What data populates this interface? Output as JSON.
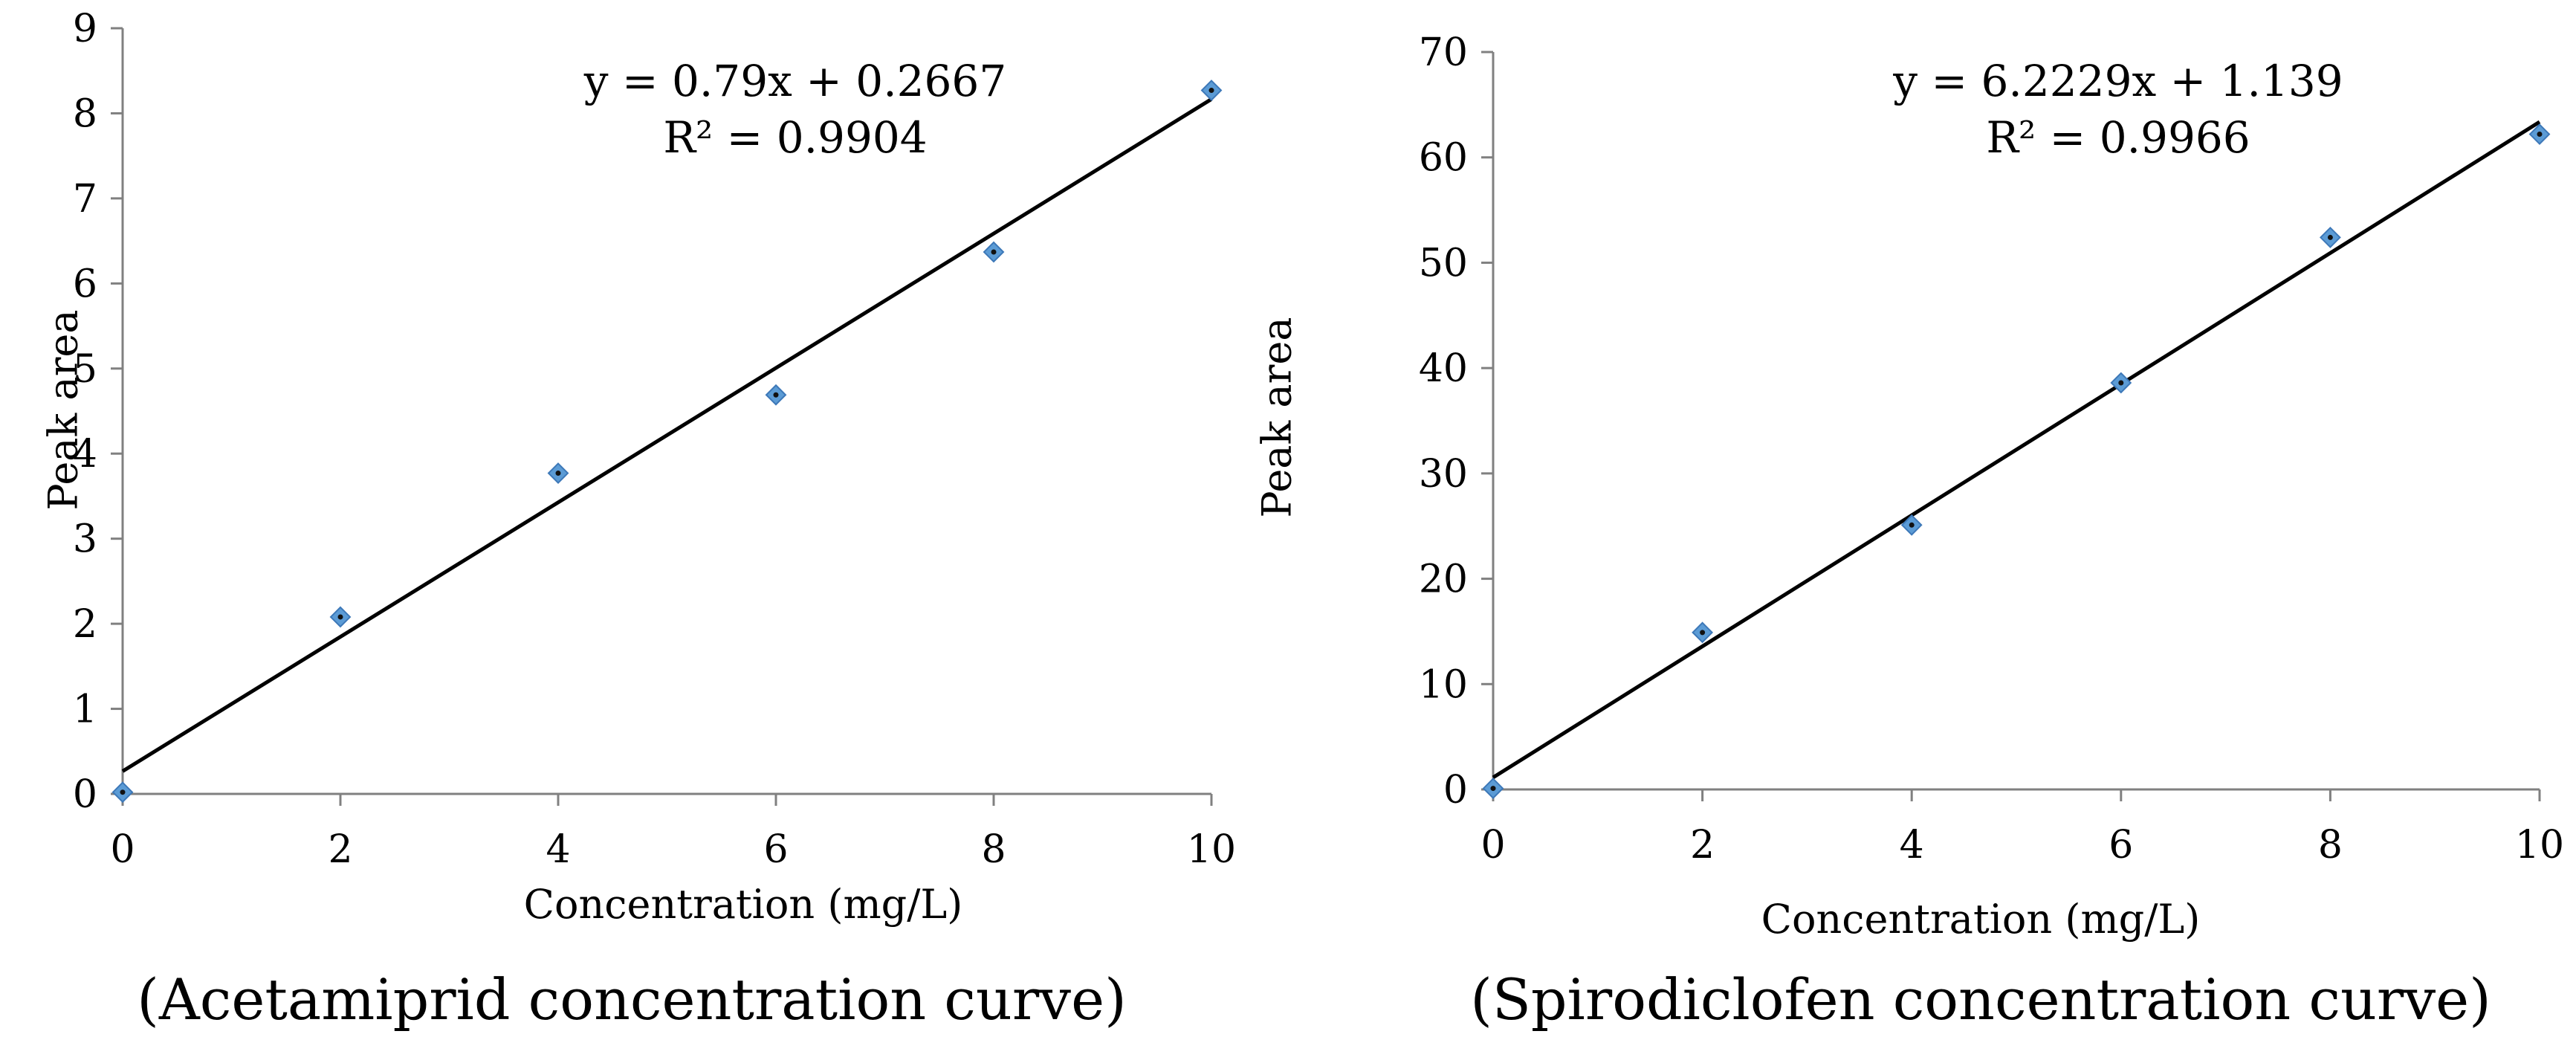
{
  "chart_data": [
    {
      "type": "scatter",
      "title": "",
      "caption": "(Acetamiprid concentration curve)",
      "xlabel": "Concentration (mg/L)",
      "ylabel": "Peak area",
      "xlim": [
        0,
        10
      ],
      "ylim": [
        0,
        9
      ],
      "xticks": [
        0,
        2,
        4,
        6,
        8,
        10
      ],
      "yticks": [
        0,
        1,
        2,
        3,
        4,
        5,
        6,
        7,
        8,
        9
      ],
      "x": [
        0,
        2,
        4,
        6,
        8,
        10
      ],
      "y": [
        0.02,
        2.08,
        3.77,
        4.69,
        6.37,
        8.27
      ],
      "trendline": {
        "slope": 0.79,
        "intercept": 0.2667
      },
      "equation": "y = 0.79x + 0.2667",
      "r_squared": "R² = 0.9904",
      "marker_color": "#5b9bd5",
      "line_color": "#000000",
      "grid": false
    },
    {
      "type": "scatter",
      "title": "",
      "caption": "(Spirodiclofen concentration curve)",
      "xlabel": "Concentration (mg/L)",
      "ylabel": "Peak area",
      "xlim": [
        0,
        10
      ],
      "ylim": [
        0,
        70
      ],
      "xticks": [
        0,
        2,
        4,
        6,
        8,
        10
      ],
      "yticks": [
        0,
        10,
        20,
        30,
        40,
        50,
        60,
        70
      ],
      "x": [
        0,
        2,
        4,
        6,
        8,
        10
      ],
      "y": [
        0.1,
        14.9,
        25.1,
        38.6,
        52.4,
        62.2
      ],
      "trendline": {
        "slope": 6.2229,
        "intercept": 1.139
      },
      "equation": "y = 6.2229x + 1.139",
      "r_squared": "R² = 0.9966",
      "marker_color": "#5b9bd5",
      "line_color": "#000000",
      "grid": false
    }
  ]
}
